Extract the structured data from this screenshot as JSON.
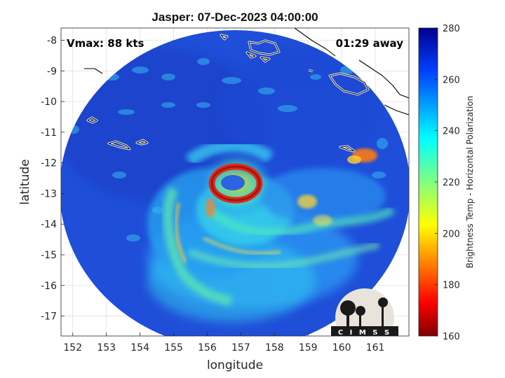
{
  "title": "Jasper: 07-Dec-2023 04:00:00",
  "annotations": {
    "vmax": "Vmax: 88 kts",
    "time_away": "01:29 away"
  },
  "axes": {
    "xlabel": "longitude",
    "ylabel": "latitude",
    "xlim": [
      151.65,
      162.0
    ],
    "ylim": [
      -17.65,
      -7.6
    ],
    "xticks": [
      "152",
      "153",
      "154",
      "155",
      "156",
      "157",
      "158",
      "159",
      "160",
      "161"
    ],
    "yticks": [
      "-8",
      "-9",
      "-10",
      "-11",
      "-12",
      "-13",
      "-14",
      "-15",
      "-16",
      "-17"
    ],
    "grid": true
  },
  "colorbar": {
    "label": "Brightness Temp - Horizontal Polarization",
    "ticks": [
      "280",
      "260",
      "240",
      "220",
      "200",
      "180",
      "160"
    ],
    "range": [
      160,
      280
    ],
    "colormap": "jet"
  },
  "logo": {
    "text": "CIMSS"
  },
  "colors": {
    "swath_base": "#1f4fd8",
    "eye_ring": "#d8241c",
    "background": "#ffffff"
  },
  "chart_data": {
    "type": "heatmap",
    "title": "Jasper: 07-Dec-2023 04:00:00",
    "xlabel": "longitude",
    "ylabel": "latitude",
    "swath": {
      "center_lon": 157.0,
      "center_lat": -12.55,
      "radius_lon": 5.25,
      "radius_lat": 5.1
    },
    "storm_center": {
      "lon": 156.65,
      "lat": -12.65
    },
    "features": [
      {
        "name": "eyewall",
        "lon": 156.65,
        "lat": -12.65,
        "min_temp": 172
      },
      {
        "name": "inner-band",
        "lon": 156.9,
        "lat": -13.6,
        "min_temp": 215
      },
      {
        "name": "outer-band-south",
        "lon": 157.2,
        "lat": -15.2,
        "min_temp": 228
      },
      {
        "name": "outer-band-west",
        "lon": 155.1,
        "lat": -13.6,
        "min_temp": 222
      },
      {
        "name": "convection-east",
        "lon": 160.4,
        "lat": -11.9,
        "min_temp": 205
      },
      {
        "name": "convection-east-2",
        "lon": 159.1,
        "lat": -13.2,
        "min_temp": 225
      }
    ]
  }
}
